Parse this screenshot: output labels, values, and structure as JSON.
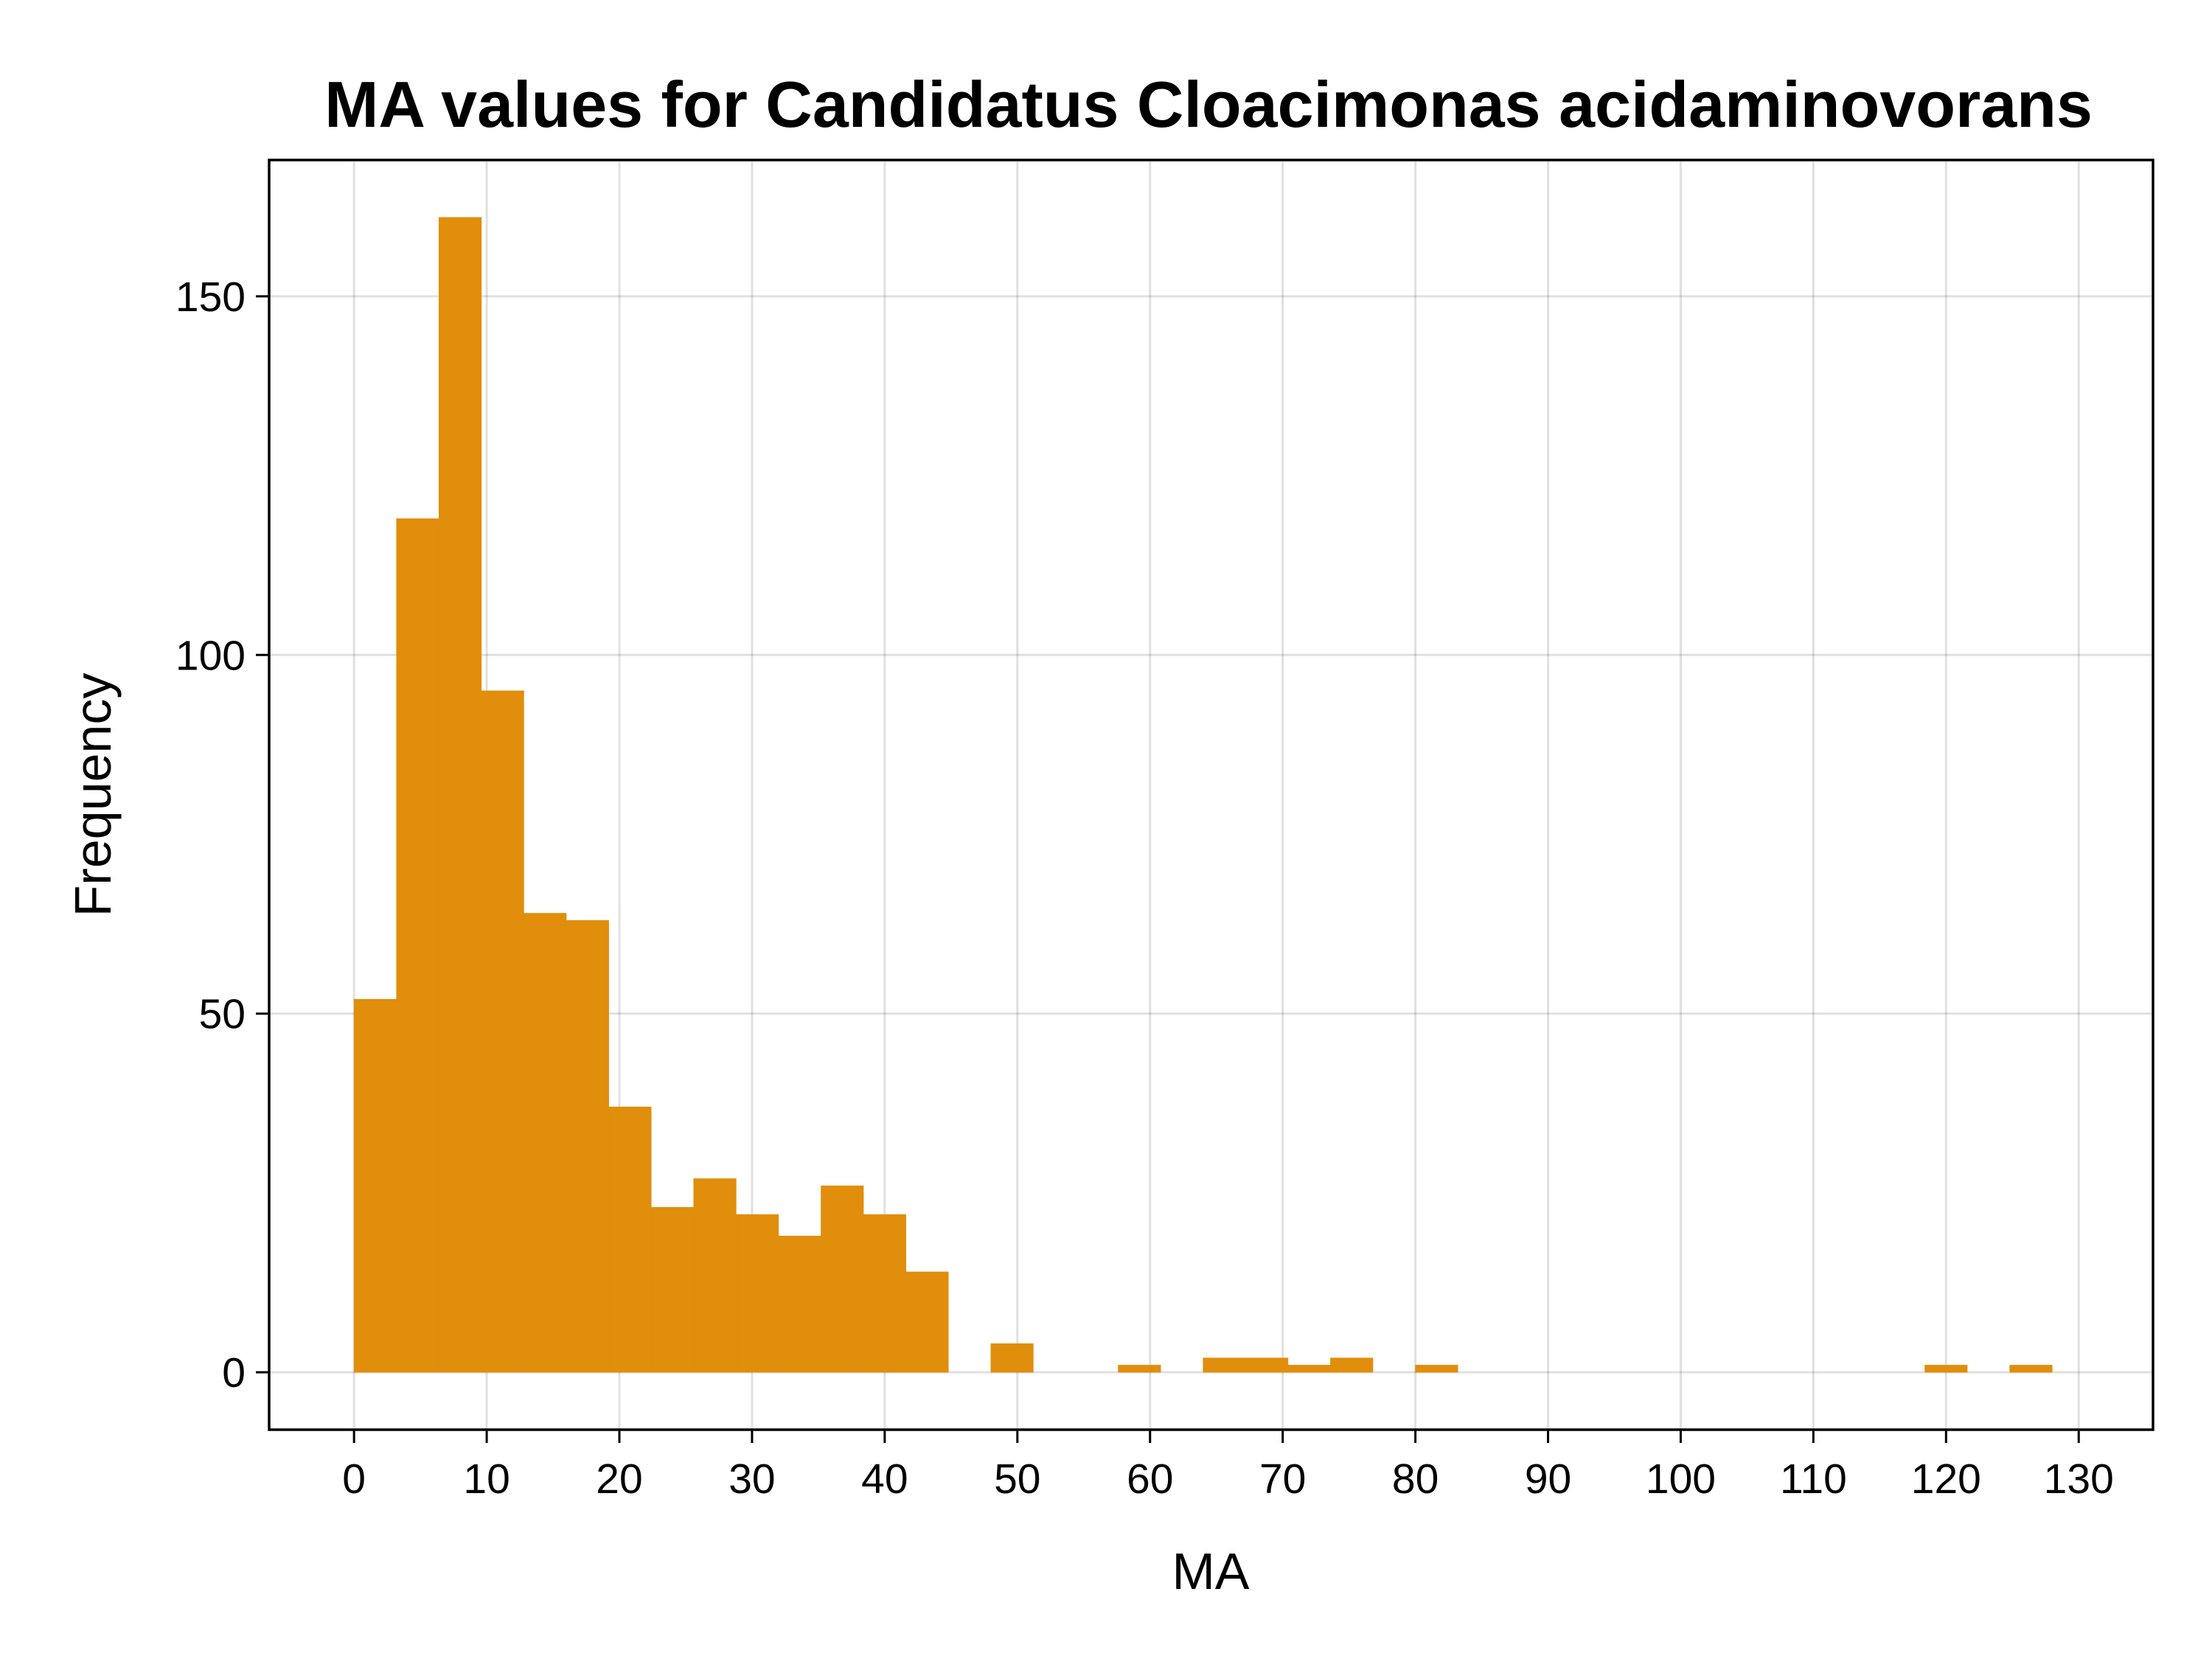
{
  "chart_data": {
    "type": "bar",
    "title": "MA values for Candidatus Cloacimonas acidaminovorans",
    "xlabel": "MA",
    "ylabel": "Frequency",
    "bin_width": 3.2,
    "bin_start": 0,
    "bins": [
      {
        "x0": 0.0,
        "x1": 3.2,
        "count": 52
      },
      {
        "x0": 3.2,
        "x1": 6.4,
        "count": 119
      },
      {
        "x0": 6.4,
        "x1": 9.6,
        "count": 161
      },
      {
        "x0": 9.6,
        "x1": 12.8,
        "count": 95
      },
      {
        "x0": 12.8,
        "x1": 16.0,
        "count": 64
      },
      {
        "x0": 16.0,
        "x1": 19.2,
        "count": 63
      },
      {
        "x0": 19.2,
        "x1": 22.4,
        "count": 37
      },
      {
        "x0": 22.4,
        "x1": 25.6,
        "count": 23
      },
      {
        "x0": 25.6,
        "x1": 28.8,
        "count": 27
      },
      {
        "x0": 28.8,
        "x1": 32.0,
        "count": 22
      },
      {
        "x0": 32.0,
        "x1": 35.2,
        "count": 19
      },
      {
        "x0": 35.2,
        "x1": 38.4,
        "count": 26
      },
      {
        "x0": 38.4,
        "x1": 41.6,
        "count": 22
      },
      {
        "x0": 41.6,
        "x1": 44.8,
        "count": 14
      },
      {
        "x0": 48.0,
        "x1": 51.2,
        "count": 4
      },
      {
        "x0": 57.6,
        "x1": 60.8,
        "count": 1
      },
      {
        "x0": 64.0,
        "x1": 67.2,
        "count": 2
      },
      {
        "x0": 67.2,
        "x1": 70.4,
        "count": 2
      },
      {
        "x0": 70.4,
        "x1": 73.6,
        "count": 1
      },
      {
        "x0": 73.6,
        "x1": 76.8,
        "count": 2
      },
      {
        "x0": 80.0,
        "x1": 83.2,
        "count": 1
      },
      {
        "x0": 118.4,
        "x1": 121.6,
        "count": 1
      },
      {
        "x0": 124.8,
        "x1": 128.0,
        "count": 1
      }
    ],
    "xlim": [
      -6.4,
      135.6
    ],
    "ylim": [
      -8,
      169
    ],
    "xticks": [
      0,
      10,
      20,
      30,
      40,
      50,
      60,
      70,
      80,
      90,
      100,
      110,
      120,
      130
    ],
    "yticks": [
      0,
      50,
      100,
      150
    ],
    "grid": true,
    "legend": "none",
    "colors": {
      "bar": "#E08E0B",
      "grid": "#000000",
      "frame": "#000000",
      "background": "#FFFFFF"
    }
  }
}
